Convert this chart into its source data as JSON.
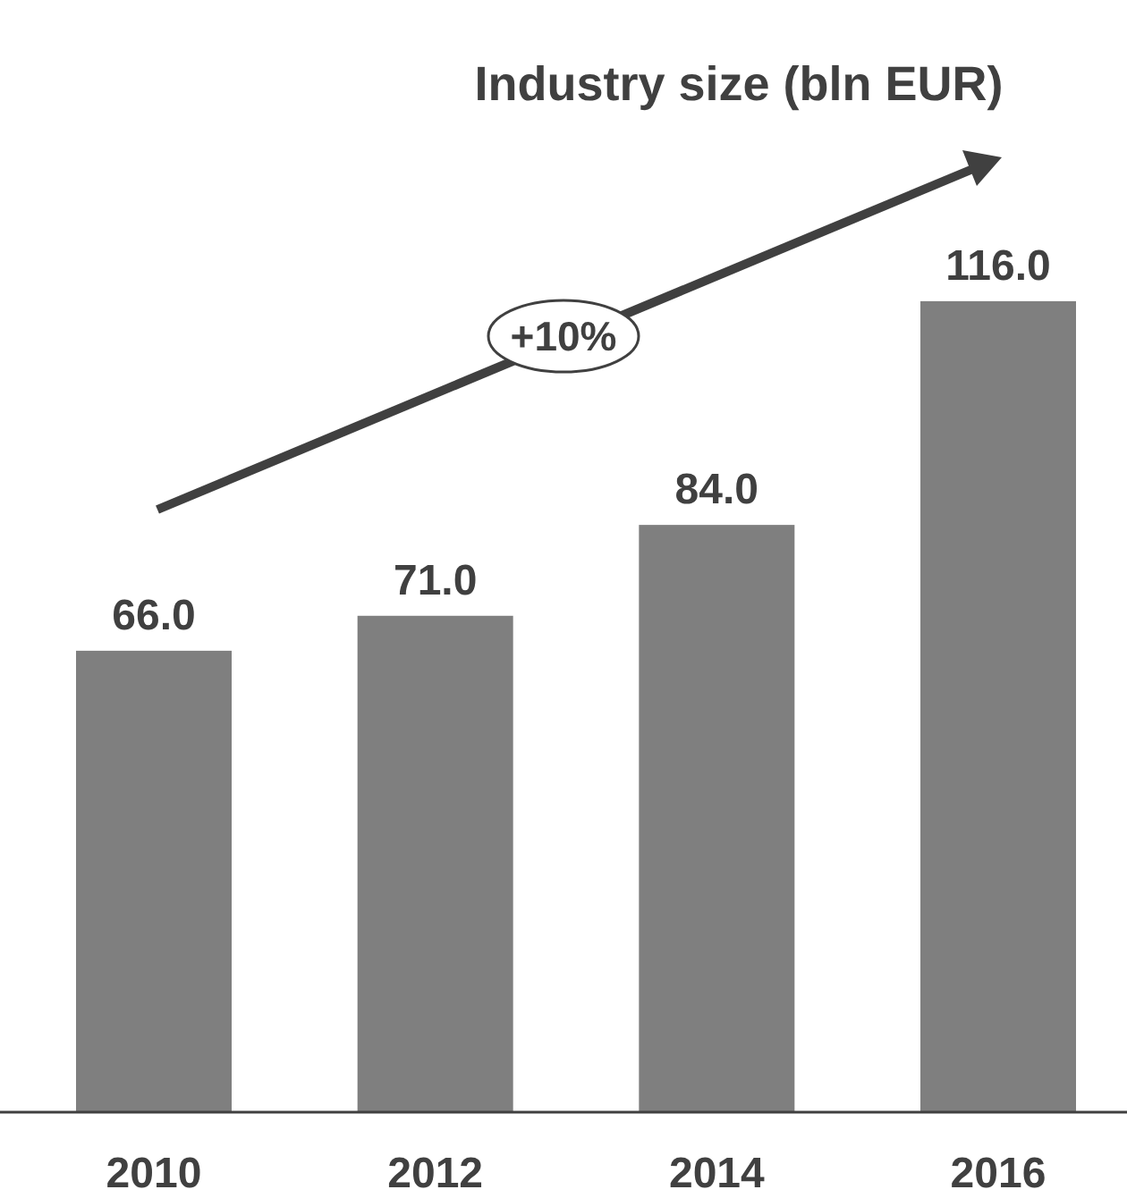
{
  "chart_data": {
    "type": "bar",
    "title": "Industry size (bln EUR)",
    "categories": [
      "2010",
      "2012",
      "2014",
      "2016"
    ],
    "values": [
      66.0,
      71.0,
      84.0,
      116.0
    ],
    "color": "#7f7f7f",
    "data_labels": true,
    "value_labels": [
      "66.0",
      "71.0",
      "84.0",
      "116.0"
    ],
    "annotations": [
      "+10%"
    ]
  }
}
